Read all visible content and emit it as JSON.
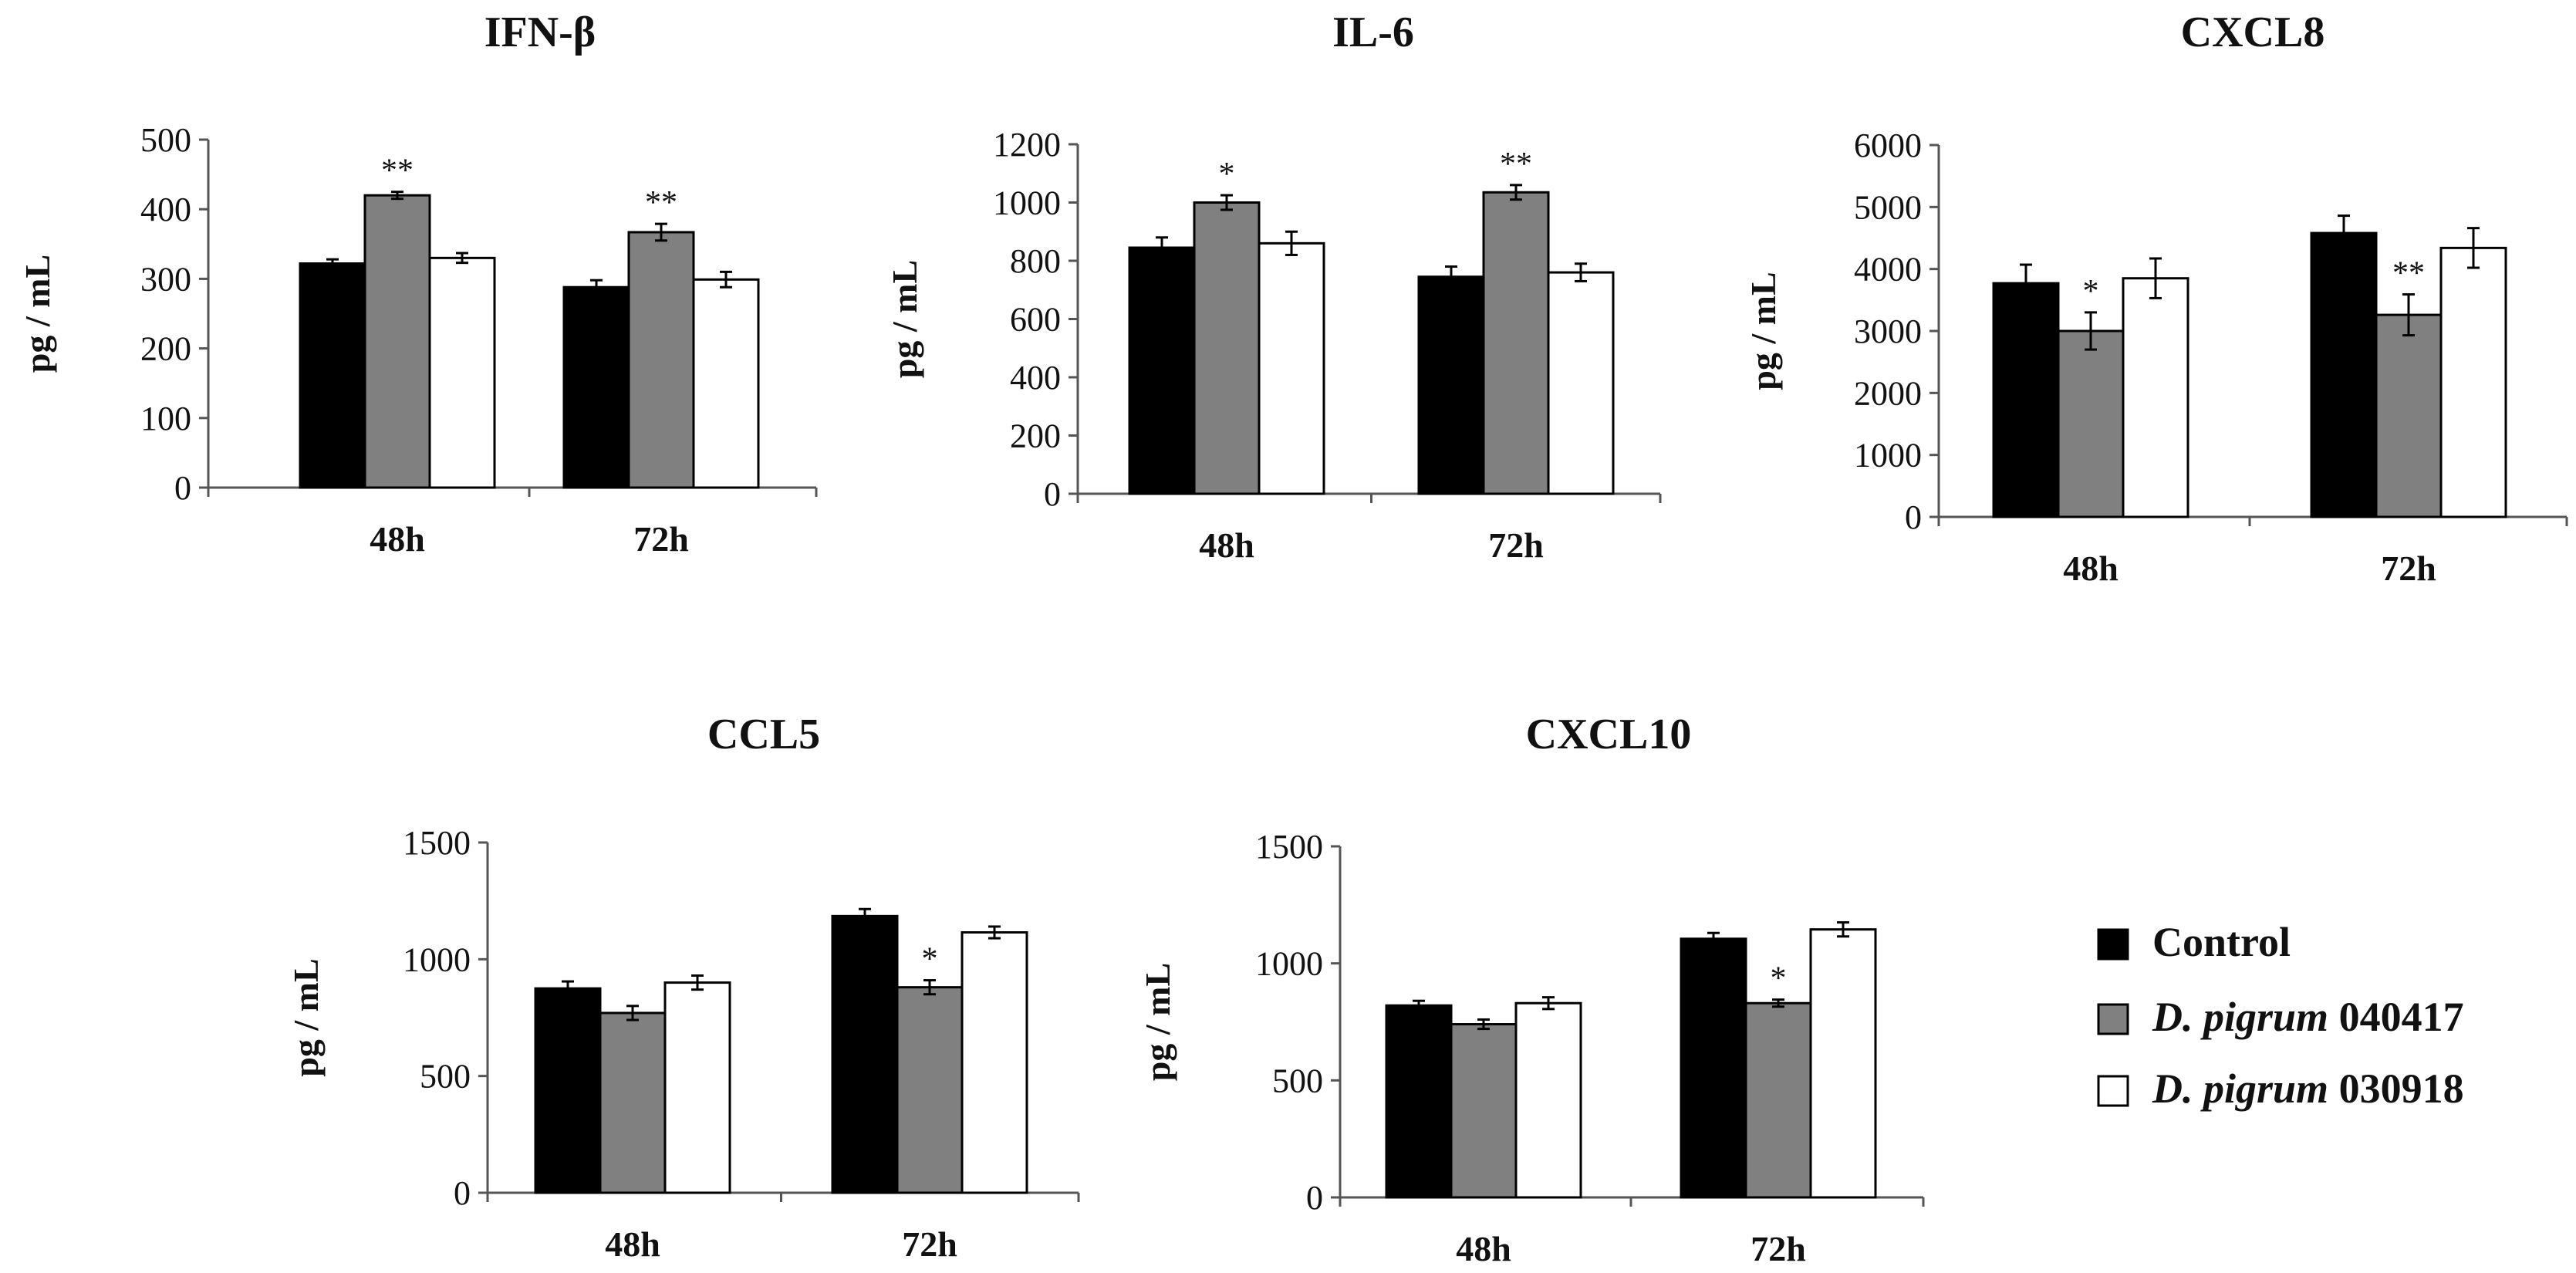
{
  "colors": {
    "series": [
      "#000000",
      "#808080",
      "#ffffff"
    ],
    "axis": "#555555"
  },
  "legend": {
    "items": [
      {
        "name_italic": "",
        "name": "Control"
      },
      {
        "name_italic": "D. pigrum",
        "name": " 040417"
      },
      {
        "name_italic": "D. pigrum",
        "name": " 030918"
      }
    ]
  },
  "chart_data": [
    {
      "type": "bar",
      "title": "IFN-β",
      "ylabel": "pg / mL",
      "ylim": [
        0,
        500
      ],
      "yticks": [
        0,
        100,
        200,
        300,
        400,
        500
      ],
      "categories": [
        "48h",
        "72h"
      ],
      "series": [
        {
          "name": "Control",
          "values": [
            322,
            288
          ],
          "errors": [
            6,
            10
          ]
        },
        {
          "name": "D. pigrum 040417",
          "values": [
            420,
            367
          ],
          "errors": [
            5,
            12
          ]
        },
        {
          "name": "D. pigrum 030918",
          "values": [
            330,
            299
          ],
          "errors": [
            7,
            11
          ]
        }
      ],
      "annotations": [
        {
          "category": "48h",
          "series": 1,
          "text": "**"
        },
        {
          "category": "72h",
          "series": 1,
          "text": "**"
        }
      ]
    },
    {
      "type": "bar",
      "title": "IL-6",
      "ylabel": "pg / mL",
      "ylim": [
        0,
        1200
      ],
      "yticks": [
        0,
        200,
        400,
        600,
        800,
        1000,
        1200
      ],
      "categories": [
        "48h",
        "72h"
      ],
      "series": [
        {
          "name": "Control",
          "values": [
            845,
            745
          ],
          "errors": [
            35,
            35
          ]
        },
        {
          "name": "D. pigrum 040417",
          "values": [
            1000,
            1035
          ],
          "errors": [
            25,
            25
          ]
        },
        {
          "name": "D. pigrum 030918",
          "values": [
            860,
            760
          ],
          "errors": [
            40,
            30
          ]
        }
      ],
      "annotations": [
        {
          "category": "48h",
          "series": 1,
          "text": "*"
        },
        {
          "category": "72h",
          "series": 1,
          "text": "**"
        }
      ]
    },
    {
      "type": "bar",
      "title": "CXCL8",
      "ylabel": "pg / mL",
      "ylim": [
        0,
        6000
      ],
      "yticks": [
        0,
        1000,
        2000,
        3000,
        4000,
        5000,
        6000
      ],
      "categories": [
        "48h",
        "72h"
      ],
      "series": [
        {
          "name": "Control",
          "values": [
            3770,
            4580
          ],
          "errors": [
            300,
            280
          ]
        },
        {
          "name": "D. pigrum 040417",
          "values": [
            3000,
            3260
          ],
          "errors": [
            300,
            330
          ]
        },
        {
          "name": "D. pigrum 030918",
          "values": [
            3850,
            4340
          ],
          "errors": [
            320,
            320
          ]
        }
      ],
      "annotations": [
        {
          "category": "48h",
          "series": 1,
          "text": "*"
        },
        {
          "category": "72h",
          "series": 1,
          "text": "**"
        }
      ]
    },
    {
      "type": "bar",
      "title": "CCL5",
      "ylabel": "pg / mL",
      "ylim": [
        0,
        1500
      ],
      "yticks": [
        0,
        500,
        1000,
        1500
      ],
      "categories": [
        "48h",
        "72h"
      ],
      "series": [
        {
          "name": "Control",
          "values": [
            875,
            1185
          ],
          "errors": [
            30,
            30
          ]
        },
        {
          "name": "D. pigrum 040417",
          "values": [
            770,
            880
          ],
          "errors": [
            30,
            30
          ]
        },
        {
          "name": "D. pigrum 030918",
          "values": [
            900,
            1115
          ],
          "errors": [
            30,
            25
          ]
        }
      ],
      "annotations": [
        {
          "category": "72h",
          "series": 1,
          "text": "*"
        }
      ]
    },
    {
      "type": "bar",
      "title": "CXCL10",
      "ylabel": "pg / mL",
      "ylim": [
        0,
        1500
      ],
      "yticks": [
        0,
        500,
        1000,
        1500
      ],
      "categories": [
        "48h",
        "72h"
      ],
      "series": [
        {
          "name": "Control",
          "values": [
            820,
            1105
          ],
          "errors": [
            20,
            25
          ]
        },
        {
          "name": "D. pigrum 040417",
          "values": [
            740,
            830
          ],
          "errors": [
            20,
            15
          ]
        },
        {
          "name": "D. pigrum 030918",
          "values": [
            830,
            1145
          ],
          "errors": [
            25,
            30
          ]
        }
      ],
      "annotations": [
        {
          "category": "72h",
          "series": 1,
          "text": "*"
        }
      ]
    }
  ]
}
